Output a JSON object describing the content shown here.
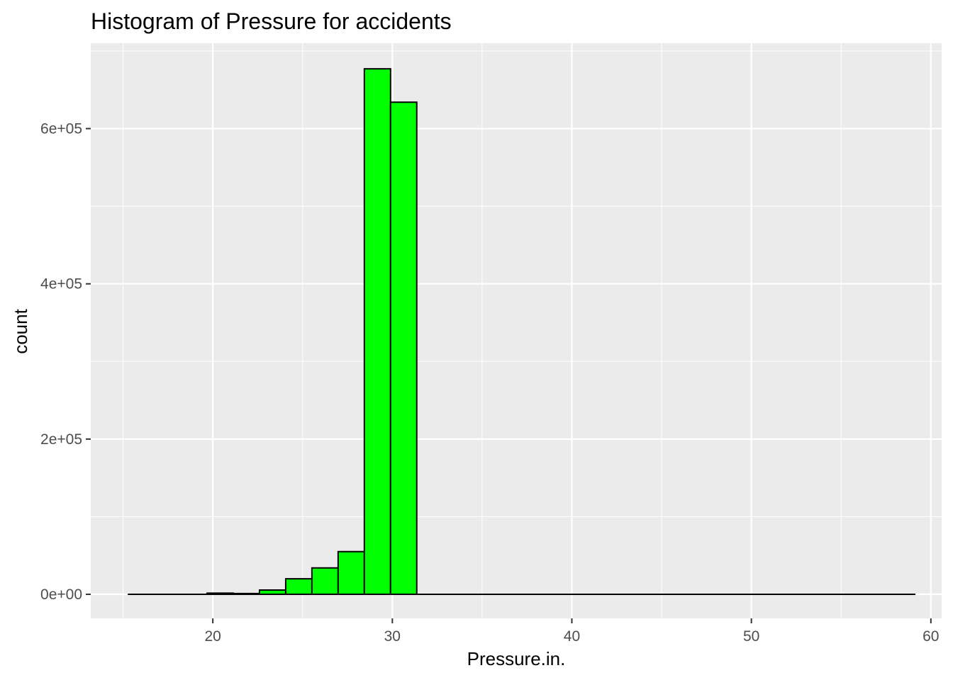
{
  "chart_data": {
    "type": "bar",
    "title": "Histogram of Pressure for accidents",
    "xlabel": "Pressure.in.",
    "ylabel": "count",
    "xlim": [
      13.2,
      60.6
    ],
    "ylim": [
      -31000,
      710000
    ],
    "x_ticks": [
      20,
      30,
      40,
      50,
      60
    ],
    "x_tick_labels": [
      "20",
      "30",
      "40",
      "50",
      "60"
    ],
    "y_ticks": [
      0,
      200000,
      400000,
      600000
    ],
    "y_tick_labels": [
      "0e+00",
      "2e+05",
      "4e+05",
      "6e+05"
    ],
    "bin_width": 1.46,
    "bins": [
      {
        "start": 15.3,
        "end": 16.76,
        "count": 0
      },
      {
        "start": 16.76,
        "end": 18.22,
        "count": 0
      },
      {
        "start": 18.22,
        "end": 19.68,
        "count": 0
      },
      {
        "start": 19.68,
        "end": 21.14,
        "count": 1500
      },
      {
        "start": 21.14,
        "end": 22.6,
        "count": 1000
      },
      {
        "start": 22.6,
        "end": 24.06,
        "count": 5500
      },
      {
        "start": 24.06,
        "end": 25.52,
        "count": 20000
      },
      {
        "start": 25.52,
        "end": 26.98,
        "count": 34000
      },
      {
        "start": 26.98,
        "end": 28.44,
        "count": 55000
      },
      {
        "start": 28.44,
        "end": 29.9,
        "count": 677000
      },
      {
        "start": 29.9,
        "end": 31.36,
        "count": 634000
      },
      {
        "start": 31.36,
        "end": 32.82,
        "count": 0
      },
      {
        "start": 32.82,
        "end": 34.28,
        "count": 0
      },
      {
        "start": 34.28,
        "end": 35.74,
        "count": 0
      },
      {
        "start": 35.74,
        "end": 37.2,
        "count": 0
      },
      {
        "start": 37.2,
        "end": 38.66,
        "count": 0
      },
      {
        "start": 38.66,
        "end": 40.12,
        "count": 0
      },
      {
        "start": 40.12,
        "end": 41.58,
        "count": 0
      },
      {
        "start": 41.58,
        "end": 43.04,
        "count": 0
      },
      {
        "start": 43.04,
        "end": 44.5,
        "count": 0
      },
      {
        "start": 44.5,
        "end": 45.96,
        "count": 0
      },
      {
        "start": 45.96,
        "end": 47.42,
        "count": 0
      },
      {
        "start": 47.42,
        "end": 48.88,
        "count": 0
      },
      {
        "start": 48.88,
        "end": 50.34,
        "count": 0
      },
      {
        "start": 50.34,
        "end": 51.8,
        "count": 0
      },
      {
        "start": 51.8,
        "end": 53.26,
        "count": 0
      },
      {
        "start": 53.26,
        "end": 54.72,
        "count": 0
      },
      {
        "start": 54.72,
        "end": 56.18,
        "count": 0
      },
      {
        "start": 56.18,
        "end": 57.64,
        "count": 0
      },
      {
        "start": 57.64,
        "end": 59.1,
        "count": 0
      }
    ],
    "grid": true,
    "colors": {
      "panel": "#ebebeb",
      "gridline": "#ffffff",
      "bar_fill": "#00ff00",
      "bar_outline": "#000000"
    }
  }
}
